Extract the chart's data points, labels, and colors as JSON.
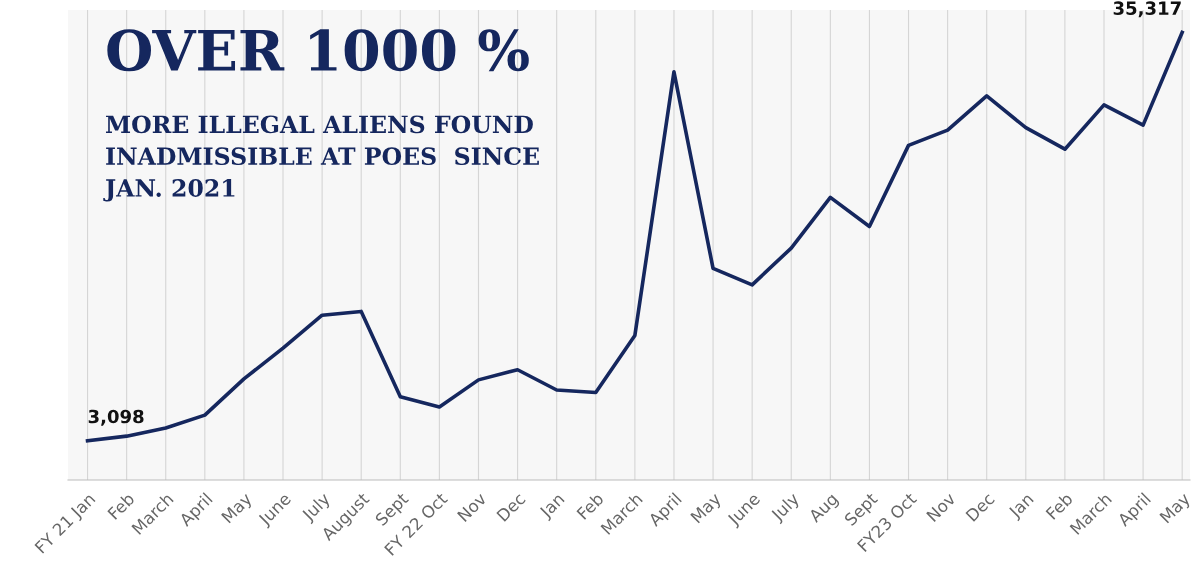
{
  "chart_data": {
    "type": "line",
    "title": "OVER 1000 %",
    "subtitle": "MORE ILLEGAL ALIENS FOUND\nINADMISSIBLE AT POES  SINCE\nJAN. 2021",
    "categories": [
      "FY 21 Jan",
      "Feb",
      "March",
      "April",
      "May",
      "June",
      "July",
      "August",
      "Sept",
      "FY 22 Oct",
      "Nov",
      "Dec",
      "Jan",
      "Feb",
      "March",
      "April",
      "May",
      "June",
      "July",
      "Aug",
      "Sept",
      "FY23 Oct",
      "Nov",
      "Dec",
      "Jan",
      "Feb",
      "March",
      "April",
      "May"
    ],
    "series": [
      {
        "color": "#15275e",
        "values": [
          3098,
          3460,
          4100,
          5120,
          7980,
          10400,
          13000,
          13300,
          6570,
          5760,
          7900,
          8700,
          7100,
          6900,
          11400,
          32200,
          16700,
          15400,
          18300,
          22300,
          20000,
          26400,
          27600,
          30300,
          27800,
          26100,
          29600,
          28000,
          35317
        ],
        "value_labels": [
          "3,098",
          null,
          null,
          null,
          null,
          null,
          null,
          null,
          null,
          null,
          null,
          null,
          null,
          null,
          null,
          null,
          null,
          null,
          null,
          null,
          null,
          null,
          null,
          null,
          null,
          null,
          null,
          null,
          "35,317"
        ]
      }
    ],
    "tick_labels": "x",
    "grid": "x",
    "legend": false,
    "marker": "none",
    "line_style": "solid"
  }
}
